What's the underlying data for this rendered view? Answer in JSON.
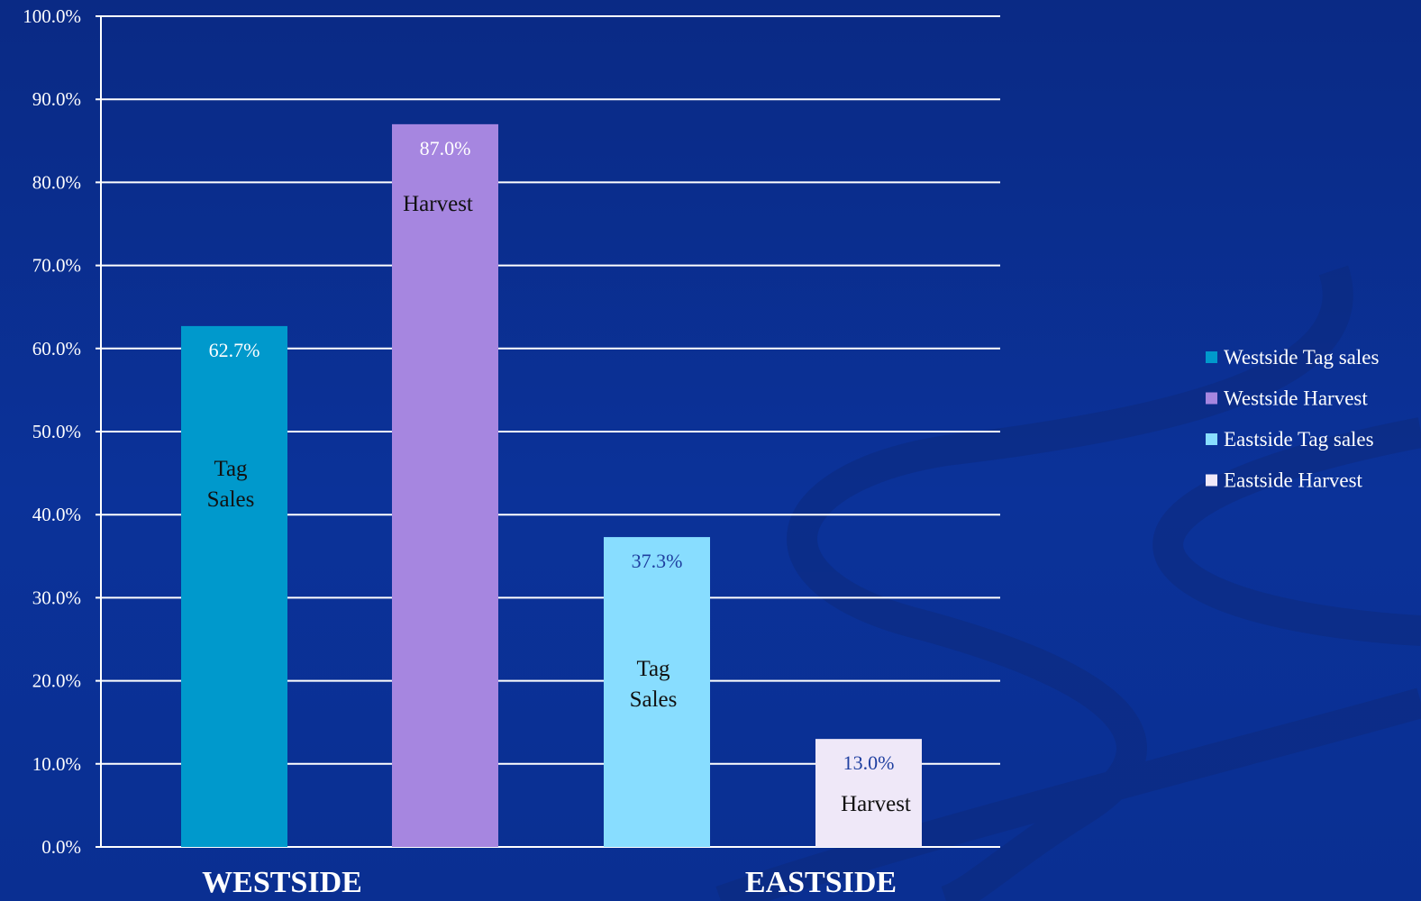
{
  "colors": {
    "background": "#0b3299",
    "gridline": "#ffffff",
    "westside_tag": "#0099cc",
    "westside_harvest": "#a686e0",
    "eastside_tag": "#88ddff",
    "eastside_harvest": "#efe8f8"
  },
  "chart_data": {
    "type": "bar",
    "title": "",
    "xlabel": "",
    "ylabel": "",
    "ylim": [
      0,
      100
    ],
    "y_ticks": [
      "0.0%",
      "10.0%",
      "20.0%",
      "30.0%",
      "40.0%",
      "50.0%",
      "60.0%",
      "70.0%",
      "80.0%",
      "90.0%",
      "100.0%"
    ],
    "grid": true,
    "legend_position": "right",
    "categories": [
      "WESTSIDE",
      "EASTSIDE"
    ],
    "bars": [
      {
        "series": "Westside Tag sales",
        "category": "WESTSIDE",
        "value": 62.7,
        "value_label": "62.7%",
        "inner_label": [
          "Tag",
          "Sales"
        ],
        "color": "#0099cc",
        "label_color": "#ffffff"
      },
      {
        "series": "Westside Harvest",
        "category": "WESTSIDE",
        "value": 87.0,
        "value_label": "87.0%",
        "inner_label": [
          "Harvest"
        ],
        "color": "#a686e0",
        "label_color": "#ffffff"
      },
      {
        "series": "Eastside Tag sales",
        "category": "EASTSIDE",
        "value": 37.3,
        "value_label": "37.3%",
        "inner_label": [
          "Tag",
          "Sales"
        ],
        "color": "#88ddff",
        "label_color": "#1f3fa0"
      },
      {
        "series": "Eastside Harvest",
        "category": "EASTSIDE",
        "value": 13.0,
        "value_label": "13.0%",
        "inner_label": [
          "Harvest"
        ],
        "color": "#efe8f8",
        "label_color": "#1f3fa0"
      }
    ],
    "legend": [
      {
        "label": "Westside Tag sales",
        "color": "#0099cc"
      },
      {
        "label": "Westside Harvest",
        "color": "#a686e0"
      },
      {
        "label": "Eastside Tag sales",
        "color": "#88ddff"
      },
      {
        "label": "Eastside Harvest",
        "color": "#efe8f8"
      }
    ]
  }
}
